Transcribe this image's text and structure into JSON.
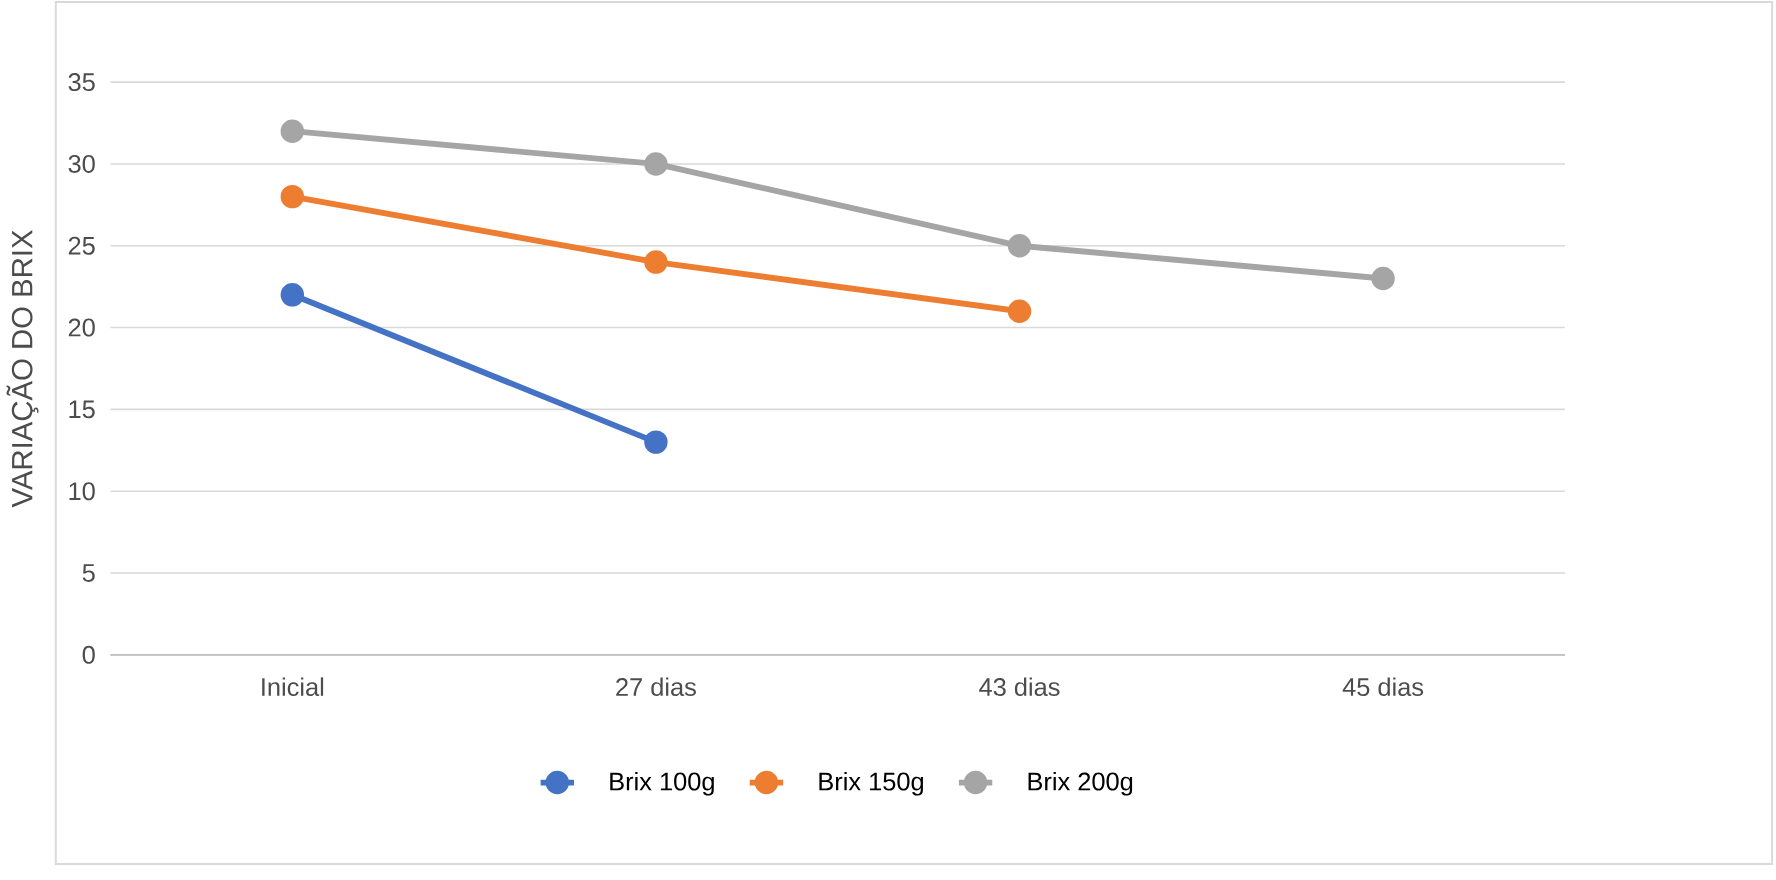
{
  "chart_data": {
    "type": "line",
    "ylabel": "VARIAÇÃO DO BRIX",
    "categories": [
      "Inicial",
      "27 dias",
      "43 dias",
      "45 dias"
    ],
    "series": [
      {
        "name": "Brix 100g",
        "color": "#4472c4",
        "values": [
          22,
          13,
          null,
          null
        ]
      },
      {
        "name": "Brix 150g",
        "color": "#ed7d31",
        "values": [
          28,
          24,
          21,
          null
        ]
      },
      {
        "name": "Brix 200g",
        "color": "#a5a5a5",
        "values": [
          32,
          30,
          25,
          23
        ]
      }
    ],
    "ylim": [
      0,
      35
    ],
    "yticks": [
      0,
      5,
      10,
      15,
      20,
      25,
      30,
      35
    ],
    "grid": "y",
    "legend": "bottom",
    "marker": "circle",
    "line_style": "solid"
  }
}
